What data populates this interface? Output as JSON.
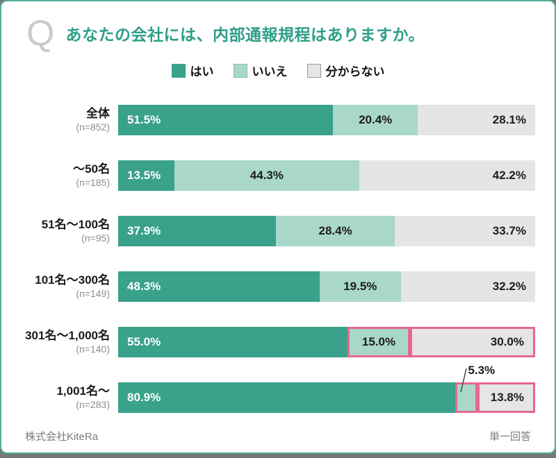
{
  "header": {
    "q_mark": "Q",
    "title": "あなたの会社には、内部通報規程はありますか。"
  },
  "colors": {
    "accent_teal": "#2e9e88",
    "card_border": "#52ab9a",
    "highlight_pink": "#e8678f",
    "q_mark_gray": "#c9cccb"
  },
  "chart_data": {
    "type": "bar",
    "orientation": "horizontal",
    "stacked": true,
    "unit": "%",
    "x_range": [
      0,
      100
    ],
    "title": "あなたの会社には、内部通報規程はありますか。",
    "legend_position": "top-center",
    "series": [
      {
        "name": "はい",
        "color": "#3aa18b",
        "swatch_border": "#3aa18b"
      },
      {
        "name": "いいえ",
        "color": "#a9d8cb",
        "swatch_border": "#82c0ae"
      },
      {
        "name": "分からない",
        "color": "#e5e5e6",
        "swatch_border": "#9b9b9b"
      }
    ],
    "rows": [
      {
        "category": "全体",
        "n": "(n=852)",
        "values": [
          51.5,
          20.4,
          28.1
        ],
        "highlighted": [],
        "callout_series": null
      },
      {
        "category": "～50名",
        "n": "(n=185)",
        "values": [
          13.5,
          44.3,
          42.2
        ],
        "highlighted": [],
        "callout_series": null
      },
      {
        "category": "51名～100名",
        "n": "(n=95)",
        "values": [
          37.9,
          28.4,
          33.7
        ],
        "highlighted": [],
        "callout_series": null
      },
      {
        "category": "101名～300名",
        "n": "(n=149)",
        "values": [
          48.3,
          19.5,
          32.2
        ],
        "highlighted": [],
        "callout_series": null
      },
      {
        "category": "301名～1,000名",
        "n": "(n=140)",
        "values": [
          55.0,
          15.0,
          30.0
        ],
        "highlighted": [
          1,
          2
        ],
        "callout_series": null
      },
      {
        "category": "1,001名～",
        "n": "(n=283)",
        "values": [
          80.9,
          5.3,
          13.8
        ],
        "highlighted": [
          1,
          2
        ],
        "callout_series": 1
      }
    ]
  },
  "footer": {
    "left": "株式会社KiteRa",
    "right": "単一回答"
  }
}
